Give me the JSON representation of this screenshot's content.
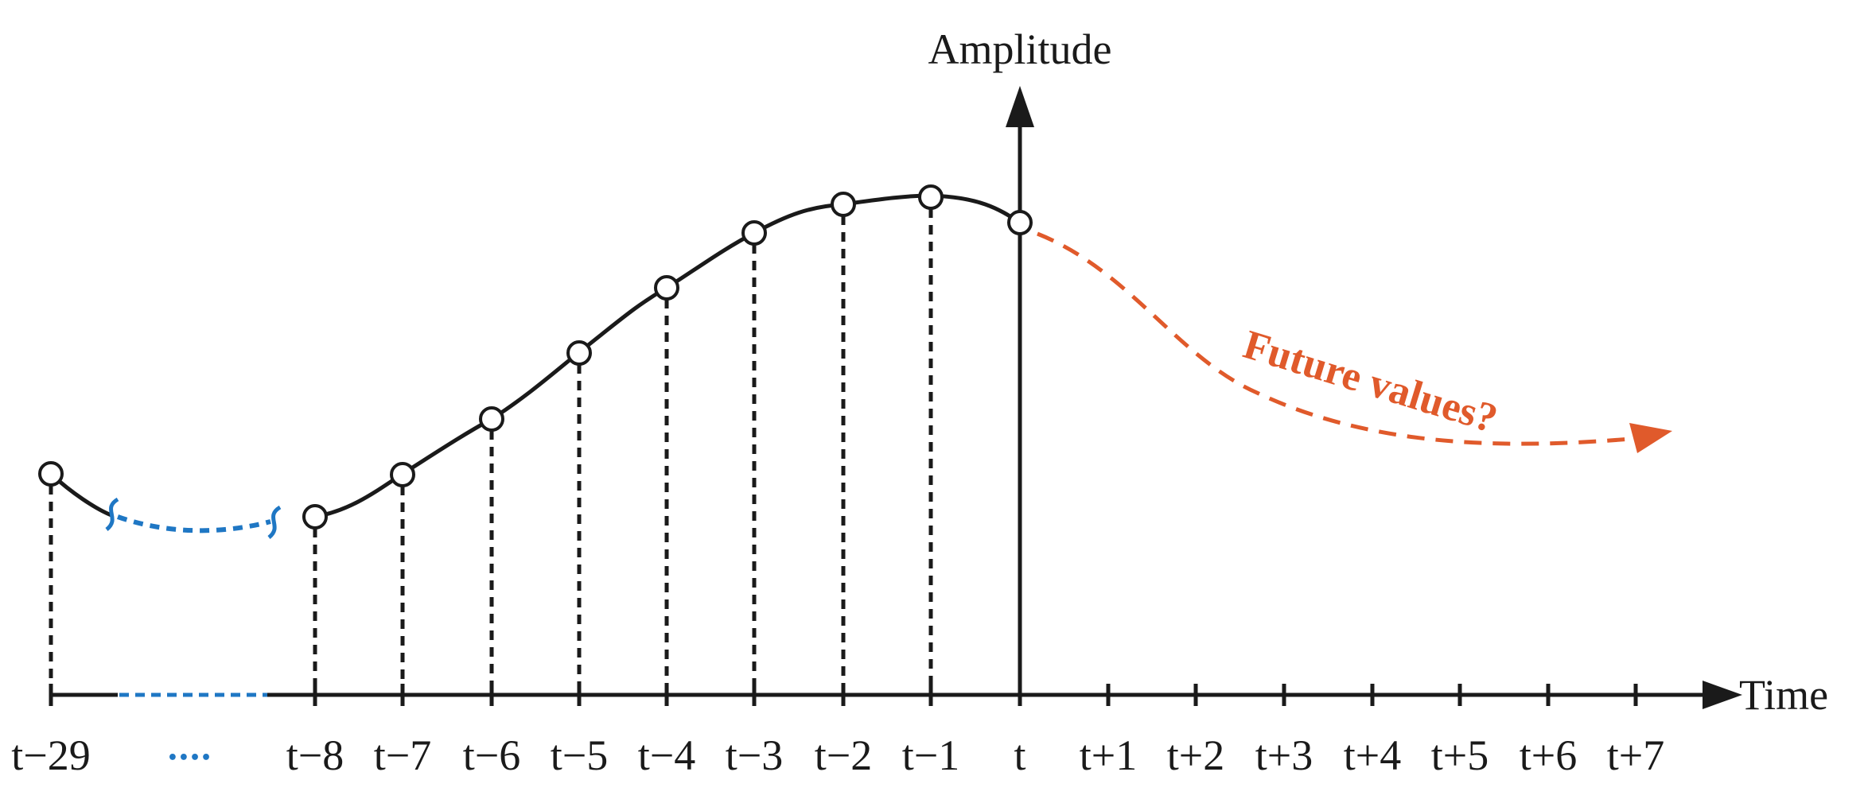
{
  "diagram": {
    "y_axis_title": "Amplitude",
    "x_axis_title": "Time",
    "future_label": "Future values?",
    "ellipsis_label": "••••",
    "colors": {
      "ink": "#1a1a1a",
      "gap": "#1f77c4",
      "forecast": "#e05a2b"
    },
    "observed": [
      {
        "label": "t−29"
      },
      {
        "label": "t−8"
      },
      {
        "label": "t−7"
      },
      {
        "label": "t−6"
      },
      {
        "label": "t−5"
      },
      {
        "label": "t−4"
      },
      {
        "label": "t−3"
      },
      {
        "label": "t−2"
      },
      {
        "label": "t−1"
      },
      {
        "label": "t"
      }
    ],
    "future_ticks": [
      "t+1",
      "t+2",
      "t+3",
      "t+4",
      "t+5",
      "t+6",
      "t+7"
    ]
  }
}
